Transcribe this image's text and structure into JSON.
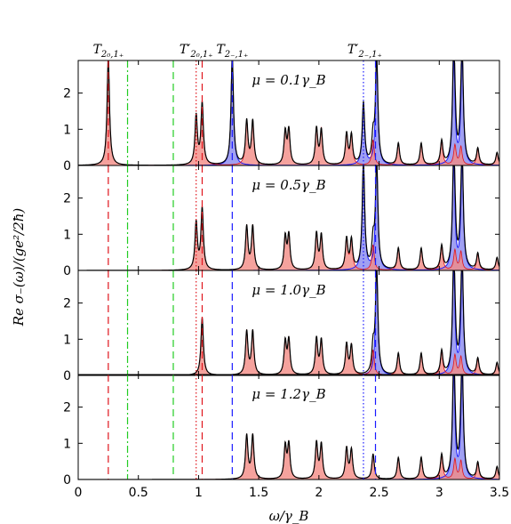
{
  "chart_data": {
    "type": "area",
    "layout": "4 stacked panels sharing x axis",
    "xlabel": "ω/γ_B",
    "ylabel": "Re σ₋(ω)/(ge²/2ħ)",
    "xlim": [
      0,
      3.5
    ],
    "ylim": [
      0,
      2.9
    ],
    "x_ticks": [
      "0",
      "0.5",
      "1",
      "1.5",
      "2",
      "2.5",
      "3",
      "3.5"
    ],
    "y_ticks": [
      "0",
      "1",
      "2"
    ],
    "grid": false,
    "colors": {
      "red_fill": "#f28b85",
      "blue_fill": "#8f8ff0",
      "red_line": "#e0141c",
      "blue_line": "#1a1aff",
      "green_line": "#22cc22",
      "total_line": "#000000"
    },
    "top_labels": [
      {
        "text": "T",
        "sub": "2₀,1₊",
        "prime": false,
        "x": 0.25
      },
      {
        "text": "T′",
        "sub": "2₀,1₊",
        "prime": true,
        "x": 0.98
      },
      {
        "text": "T",
        "sub": "2₋,1₊",
        "prime": false,
        "x": 1.28
      },
      {
        "text": "T′",
        "sub": "2₋,1₊",
        "prime": true,
        "x": 2.38
      }
    ],
    "reference_lines": [
      {
        "x": 0.25,
        "color": "red",
        "style": "dashed"
      },
      {
        "x": 0.41,
        "color": "green",
        "style": "dashdot"
      },
      {
        "x": 0.79,
        "color": "green",
        "style": "dashed"
      },
      {
        "x": 0.98,
        "color": "red",
        "style": "dotted"
      },
      {
        "x": 1.03,
        "color": "red",
        "style": "dashed"
      },
      {
        "x": 1.28,
        "color": "blue",
        "style": "dashed"
      },
      {
        "x": 2.37,
        "color": "blue",
        "style": "dotted"
      },
      {
        "x": 2.47,
        "color": "blue",
        "style": "dashed"
      }
    ],
    "panels": [
      {
        "label": "μ = 0.1γ_B",
        "red_peaks": [
          [
            0.25,
            3.0
          ],
          [
            0.98,
            1.35
          ],
          [
            1.03,
            1.7
          ],
          [
            1.4,
            1.2
          ],
          [
            1.45,
            1.2
          ],
          [
            1.72,
            0.9
          ],
          [
            1.75,
            0.95
          ],
          [
            1.98,
            1.0
          ],
          [
            2.02,
            0.95
          ],
          [
            2.23,
            0.85
          ],
          [
            2.27,
            0.8
          ],
          [
            2.45,
            0.7
          ],
          [
            2.66,
            0.6
          ],
          [
            2.85,
            0.6
          ],
          [
            3.02,
            0.65
          ],
          [
            3.13,
            0.55
          ],
          [
            3.18,
            0.5
          ],
          [
            3.32,
            0.45
          ],
          [
            3.48,
            0.35
          ]
        ],
        "blue_peaks": [
          [
            1.28,
            3.0
          ],
          [
            2.37,
            1.7
          ],
          [
            2.48,
            3.0
          ],
          [
            3.12,
            3.0
          ],
          [
            3.19,
            3.0
          ]
        ]
      },
      {
        "label": "μ = 0.5γ_B",
        "red_peaks": [
          [
            0.98,
            1.3
          ],
          [
            1.03,
            1.7
          ],
          [
            1.4,
            1.2
          ],
          [
            1.45,
            1.2
          ],
          [
            1.72,
            0.9
          ],
          [
            1.75,
            0.95
          ],
          [
            1.98,
            1.0
          ],
          [
            2.02,
            0.95
          ],
          [
            2.23,
            0.85
          ],
          [
            2.27,
            0.8
          ],
          [
            2.45,
            0.7
          ],
          [
            2.66,
            0.6
          ],
          [
            2.85,
            0.6
          ],
          [
            3.02,
            0.65
          ],
          [
            3.13,
            0.55
          ],
          [
            3.18,
            0.5
          ],
          [
            3.32,
            0.45
          ],
          [
            3.48,
            0.35
          ]
        ],
        "blue_peaks": [
          [
            2.37,
            3.0
          ],
          [
            2.48,
            3.0
          ],
          [
            3.12,
            3.0
          ],
          [
            3.19,
            3.0
          ]
        ]
      },
      {
        "label": "μ = 1.0γ_B",
        "red_peaks": [
          [
            1.03,
            1.6
          ],
          [
            1.4,
            1.2
          ],
          [
            1.45,
            1.2
          ],
          [
            1.72,
            0.9
          ],
          [
            1.75,
            0.95
          ],
          [
            1.98,
            1.0
          ],
          [
            2.02,
            0.95
          ],
          [
            2.23,
            0.85
          ],
          [
            2.27,
            0.8
          ],
          [
            2.45,
            0.7
          ],
          [
            2.66,
            0.6
          ],
          [
            2.85,
            0.6
          ],
          [
            3.02,
            0.65
          ],
          [
            3.13,
            0.55
          ],
          [
            3.18,
            0.5
          ],
          [
            3.32,
            0.45
          ],
          [
            3.48,
            0.35
          ]
        ],
        "blue_peaks": [
          [
            2.48,
            3.0
          ],
          [
            3.12,
            3.0
          ],
          [
            3.19,
            3.0
          ]
        ]
      },
      {
        "label": "μ = 1.2γ_B",
        "red_peaks": [
          [
            1.4,
            1.2
          ],
          [
            1.45,
            1.2
          ],
          [
            1.72,
            0.9
          ],
          [
            1.75,
            0.95
          ],
          [
            1.98,
            1.0
          ],
          [
            2.02,
            0.95
          ],
          [
            2.23,
            0.85
          ],
          [
            2.27,
            0.8
          ],
          [
            2.45,
            0.7
          ],
          [
            2.66,
            0.6
          ],
          [
            2.85,
            0.6
          ],
          [
            3.02,
            0.65
          ],
          [
            3.13,
            0.55
          ],
          [
            3.18,
            0.5
          ],
          [
            3.32,
            0.45
          ],
          [
            3.48,
            0.35
          ]
        ],
        "blue_peaks": [
          [
            3.12,
            3.0
          ],
          [
            3.19,
            3.0
          ]
        ]
      }
    ]
  }
}
